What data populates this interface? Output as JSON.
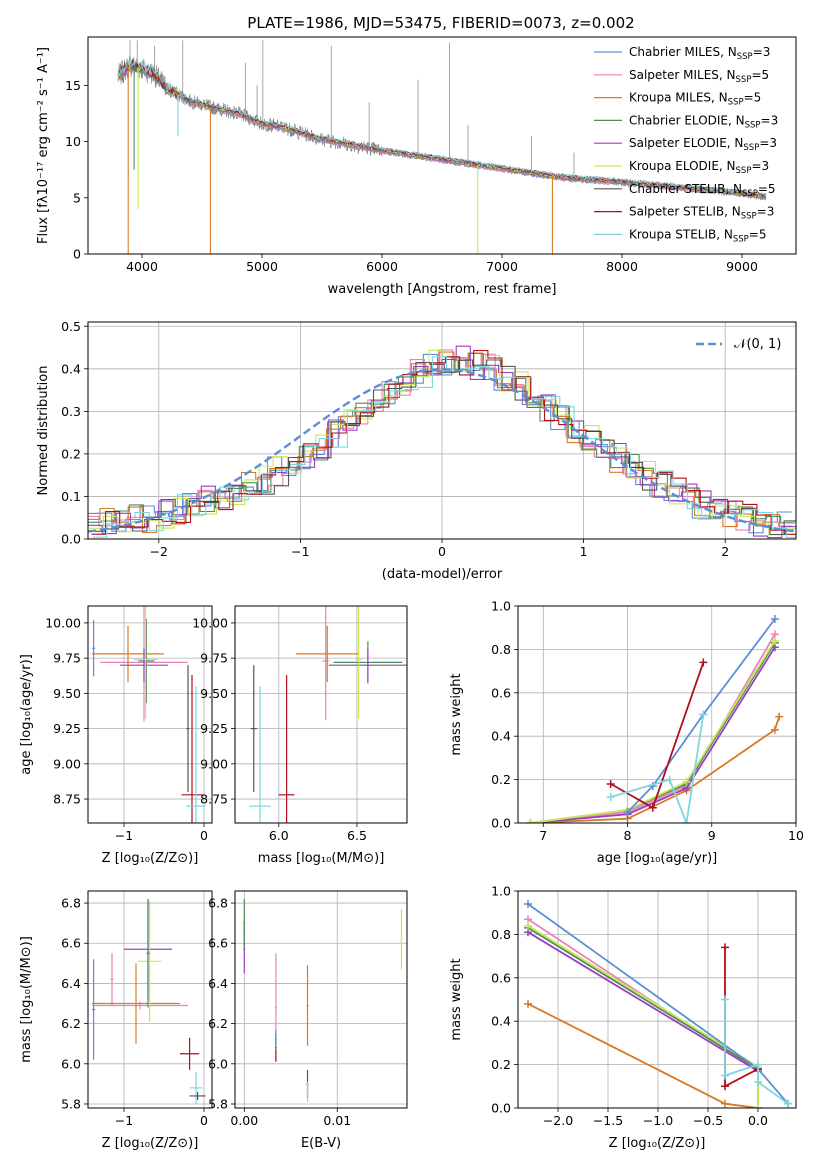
{
  "figure": {
    "title": "PLATE=1986, MJD=53475, FIBERID=0073, z=0.002"
  },
  "colors": {
    "chabrier_miles": "#5b8ed6",
    "salpeter_miles": "#e882b9",
    "kroupa_miles": "#d97a24",
    "chabrier_elodie": "#4f8e5a",
    "salpeter_elodie": "#9a3fc0",
    "kroupa_elodie": "#c8e85a",
    "chabrier_stelib": "#555555",
    "salpeter_stelib": "#b0101a",
    "kroupa_stelib": "#7dd6e0",
    "data": "#808080",
    "normal": "#5b8ed6"
  },
  "chart_data": [
    {
      "id": "spectrum",
      "type": "line",
      "xlabel": "wavelength [Angstrom, rest frame]",
      "ylabel": "Flux [fλ10⁻¹⁷ erg cm⁻² s⁻¹ A⁻¹]",
      "xlim": [
        3550,
        9450
      ],
      "ylim": [
        0,
        19.3
      ],
      "xticks": [
        4000,
        5000,
        6000,
        7000,
        8000,
        9000
      ],
      "yticks": [
        0,
        5,
        10,
        15
      ],
      "legend_position": "top-right",
      "legend": [
        {
          "label": "Chabrier MILES, N",
          "sub": "SSP",
          "suffix": "=3",
          "color": "#5b8ed6"
        },
        {
          "label": "Salpeter MILES, N",
          "sub": "SSP",
          "suffix": "=5",
          "color": "#e882b9"
        },
        {
          "label": "Kroupa MILES, N",
          "sub": "SSP",
          "suffix": "=5",
          "color": "#d97a24"
        },
        {
          "label": "Chabrier ELODIE, N",
          "sub": "SSP",
          "suffix": "=3",
          "color": "#4f8e5a"
        },
        {
          "label": "Salpeter ELODIE, N",
          "sub": "SSP",
          "suffix": "=3",
          "color": "#9a3fc0"
        },
        {
          "label": "Kroupa ELODIE, N",
          "sub": "SSP",
          "suffix": "=3",
          "color": "#c8e85a"
        },
        {
          "label": "Chabrier STELIB, N",
          "sub": "SSP",
          "suffix": "=5",
          "color": "#555555"
        },
        {
          "label": "Salpeter STELIB, N",
          "sub": "SSP",
          "suffix": "=3",
          "color": "#b0101a"
        },
        {
          "label": "Kroupa STELIB, N",
          "sub": "SSP",
          "suffix": "=5",
          "color": "#7dd6e0"
        }
      ],
      "continuum": [
        [
          3800,
          15.8
        ],
        [
          3900,
          16.8
        ],
        [
          4000,
          16.5
        ],
        [
          4100,
          16.0
        ],
        [
          4200,
          14.8
        ],
        [
          4400,
          13.6
        ],
        [
          4600,
          13.0
        ],
        [
          4800,
          12.5
        ],
        [
          5000,
          11.6
        ],
        [
          5200,
          11.2
        ],
        [
          5500,
          10.2
        ],
        [
          6000,
          9.2
        ],
        [
          6500,
          8.4
        ],
        [
          7000,
          7.6
        ],
        [
          7500,
          6.8
        ],
        [
          8000,
          6.4
        ],
        [
          8500,
          5.9
        ],
        [
          9000,
          5.4
        ],
        [
          9200,
          5.1
        ]
      ],
      "series_ranges": {
        "data": [
          3800,
          9200
        ],
        "models": [
          3800,
          9200
        ]
      },
      "spikes": [
        {
          "x": 3900,
          "y": 19.0
        },
        {
          "x": 3960,
          "y": 19.0
        },
        {
          "x": 4103,
          "y": 18.5
        },
        {
          "x": 4340,
          "y": 19.0
        },
        {
          "x": 4861,
          "y": 17.0
        },
        {
          "x": 4959,
          "y": 15.0
        },
        {
          "x": 5007,
          "y": 19.0
        },
        {
          "x": 5577,
          "y": 18.5
        },
        {
          "x": 5893,
          "y": 13.5
        },
        {
          "x": 6300,
          "y": 15.5
        },
        {
          "x": 6563,
          "y": 18.8
        },
        {
          "x": 6717,
          "y": 11.5
        },
        {
          "x": 7245,
          "y": 10.5
        },
        {
          "x": 7600,
          "y": 9.0
        }
      ],
      "dips": [
        {
          "x": 3885,
          "y": 0.0,
          "color": "#d97a24"
        },
        {
          "x": 3934,
          "y": 7.5,
          "color": "#4f8e5a"
        },
        {
          "x": 3968,
          "y": 4.0,
          "color": "#c8e85a"
        },
        {
          "x": 4300,
          "y": 10.5,
          "color": "#7dd6e0"
        },
        {
          "x": 4570,
          "y": 0.0,
          "color": "#d97a24"
        },
        {
          "x": 6798,
          "y": 0.0,
          "color": "#c8e85a"
        },
        {
          "x": 7420,
          "y": 0.0,
          "color": "#d97a24"
        }
      ]
    },
    {
      "id": "residual_histogram",
      "type": "histogram",
      "xlabel": "(data-model)/error",
      "ylabel": "Normed distribution",
      "xlim": [
        -2.5,
        2.5
      ],
      "ylim": [
        0,
        0.51
      ],
      "xticks": [
        -2,
        -1,
        0,
        1,
        2
      ],
      "yticks": [
        0.0,
        0.1,
        0.2,
        0.3,
        0.4,
        0.5
      ],
      "grid": true,
      "legend_position": "top-right",
      "legend": [
        {
          "label": "𝒩(0, 1)",
          "style": "dashed",
          "color": "#5b8ed6"
        }
      ],
      "bin_width": 0.1,
      "bin_start": -2.5,
      "base_values": [
        0.03,
        0.04,
        0.04,
        0.05,
        0.05,
        0.06,
        0.07,
        0.08,
        0.09,
        0.1,
        0.11,
        0.13,
        0.14,
        0.16,
        0.18,
        0.2,
        0.22,
        0.25,
        0.27,
        0.3,
        0.32,
        0.35,
        0.37,
        0.39,
        0.41,
        0.42,
        0.42,
        0.41,
        0.4,
        0.38,
        0.36,
        0.34,
        0.31,
        0.29,
        0.26,
        0.24,
        0.21,
        0.19,
        0.17,
        0.15,
        0.13,
        0.11,
        0.1,
        0.08,
        0.07,
        0.06,
        0.05,
        0.04,
        0.03,
        0.03
      ],
      "normal_curve": {
        "mean": 0,
        "sigma": 1
      }
    },
    {
      "id": "age_vs_Z",
      "type": "errorbar",
      "xlabel": "Z [log₁₀(Z/Z⊙)]",
      "ylabel": "age  [log₁₀(age/yr)]",
      "xlim": [
        -1.45,
        0.1
      ],
      "ylim": [
        8.58,
        10.12
      ],
      "xticks": [
        -1,
        0
      ],
      "yticks": [
        8.75,
        9.0,
        9.25,
        9.5,
        9.75,
        10.0
      ],
      "points": [
        {
          "x": -0.75,
          "y": 9.72,
          "xerr": 0.55,
          "yerr": 0.42,
          "color": "#e882b9"
        },
        {
          "x": -0.95,
          "y": 9.78,
          "xerr": 0.45,
          "yerr": 0.2,
          "color": "#d97a24"
        },
        {
          "x": -0.72,
          "y": 9.73,
          "xerr": 0.1,
          "yerr": 0.3,
          "color": "#4f8e5a"
        },
        {
          "x": -0.75,
          "y": 9.7,
          "xerr": 0.3,
          "yerr": 0.12,
          "color": "#9a3fc0"
        },
        {
          "x": -0.73,
          "y": 9.74,
          "xerr": 0.15,
          "yerr": 0.42,
          "color": "#c8e85a"
        },
        {
          "x": -0.2,
          "y": 9.25,
          "xerr": 0.02,
          "yerr": 0.45,
          "color": "#555555"
        },
        {
          "x": -0.15,
          "y": 8.78,
          "xerr": 0.13,
          "yerr": 0.85,
          "color": "#b0101a"
        },
        {
          "x": -0.1,
          "y": 8.7,
          "xerr": 0.12,
          "yerr": 0.85,
          "color": "#7dd6e0"
        },
        {
          "x": -1.38,
          "y": 9.82,
          "xerr": 0.02,
          "yerr": 0.2,
          "color": "#5b8ed6"
        }
      ]
    },
    {
      "id": "age_vs_mass",
      "type": "errorbar",
      "xlabel": "mass [log₁₀(M/M⊙)]",
      "ylabel": "",
      "xlim": [
        5.72,
        6.82
      ],
      "ylim": [
        8.58,
        10.12
      ],
      "xticks": [
        6.0,
        6.5
      ],
      "yticks": [
        8.75,
        9.0,
        9.25,
        9.5,
        9.75,
        10.0
      ],
      "points": [
        {
          "x": 6.3,
          "y": 9.73,
          "xerr": 0.02,
          "yerr": 0.42,
          "color": "#e882b9"
        },
        {
          "x": 6.31,
          "y": 9.78,
          "xerr": 0.2,
          "yerr": 0.2,
          "color": "#d97a24"
        },
        {
          "x": 6.57,
          "y": 9.72,
          "xerr": 0.22,
          "yerr": 0.15,
          "color": "#4f8e5a"
        },
        {
          "x": 6.57,
          "y": 9.7,
          "xerr": 0.25,
          "yerr": 0.12,
          "color": "#9a3fc0"
        },
        {
          "x": 6.51,
          "y": 9.74,
          "xerr": 0.02,
          "yerr": 0.42,
          "color": "#c8e85a"
        },
        {
          "x": 5.84,
          "y": 9.25,
          "xerr": 0.02,
          "yerr": 0.45,
          "color": "#555555"
        },
        {
          "x": 6.05,
          "y": 8.78,
          "xerr": 0.05,
          "yerr": 0.85,
          "color": "#b0101a"
        },
        {
          "x": 5.88,
          "y": 8.7,
          "xerr": 0.07,
          "yerr": 0.85,
          "color": "#7dd6e0"
        }
      ]
    },
    {
      "id": "massweight_vs_age",
      "type": "line",
      "xlabel": "age  [log₁₀(age/yr)]",
      "ylabel": "mass weight",
      "xlim": [
        6.7,
        10.0
      ],
      "ylim": [
        0,
        1.0
      ],
      "xticks": [
        7,
        8,
        9,
        10
      ],
      "yticks": [
        0.0,
        0.2,
        0.4,
        0.6,
        0.8,
        1.0
      ],
      "grid": true,
      "series": [
        {
          "color": "#d97a24",
          "points": [
            [
              6.85,
              0.0
            ],
            [
              8.0,
              0.02
            ],
            [
              8.7,
              0.15
            ],
            [
              9.75,
              0.43
            ],
            [
              9.8,
              0.49
            ]
          ]
        },
        {
          "color": "#e882b9",
          "points": [
            [
              6.85,
              0.0
            ],
            [
              8.0,
              0.05
            ],
            [
              8.7,
              0.17
            ],
            [
              9.75,
              0.87
            ]
          ]
        },
        {
          "color": "#9a3fc0",
          "points": [
            [
              6.85,
              0.0
            ],
            [
              8.0,
              0.04
            ],
            [
              8.7,
              0.16
            ],
            [
              9.75,
              0.81
            ]
          ]
        },
        {
          "color": "#4f8e5a",
          "points": [
            [
              6.85,
              0.0
            ],
            [
              8.0,
              0.06
            ],
            [
              8.7,
              0.18
            ],
            [
              9.75,
              0.83
            ]
          ]
        },
        {
          "color": "#c8e85a",
          "points": [
            [
              6.85,
              0.0
            ],
            [
              8.0,
              0.06
            ],
            [
              8.7,
              0.19
            ],
            [
              9.75,
              0.84
            ]
          ]
        },
        {
          "color": "#5b8ed6",
          "points": [
            [
              8.0,
              0.05
            ],
            [
              8.3,
              0.17
            ],
            [
              8.9,
              0.5
            ],
            [
              9.75,
              0.94
            ]
          ]
        },
        {
          "color": "#b0101a",
          "points": [
            [
              7.8,
              0.18
            ],
            [
              8.3,
              0.07
            ],
            [
              8.9,
              0.74
            ]
          ]
        },
        {
          "color": "#7dd6e0",
          "points": [
            [
              7.8,
              0.12
            ],
            [
              8.5,
              0.2
            ],
            [
              8.7,
              0.0
            ],
            [
              8.9,
              0.5
            ]
          ]
        }
      ]
    },
    {
      "id": "mass_vs_Z",
      "type": "errorbar",
      "xlabel": "Z [log₁₀(Z/Z⊙)]",
      "ylabel": "mass [log₁₀(M/M⊙)]",
      "xlim": [
        -1.45,
        0.1
      ],
      "ylim": [
        5.78,
        6.86
      ],
      "xticks": [
        -1,
        0
      ],
      "yticks": [
        5.8,
        6.0,
        6.2,
        6.4,
        6.6,
        6.8
      ],
      "points": [
        {
          "x": -1.38,
          "y": 6.27,
          "xerr": 0.02,
          "yerr": 0.25,
          "color": "#5b8ed6"
        },
        {
          "x": -0.8,
          "y": 6.29,
          "xerr": 0.6,
          "yerr": 0.02,
          "color": "#e882b9"
        },
        {
          "x": -1.15,
          "y": 6.42,
          "xerr": 0.02,
          "yerr": 0.13,
          "color": "#e882b9"
        },
        {
          "x": -0.85,
          "y": 6.3,
          "xerr": 0.55,
          "yerr": 0.2,
          "color": "#d97a24"
        },
        {
          "x": -0.7,
          "y": 6.57,
          "xerr": 0.3,
          "yerr": 0.25,
          "color": "#9a3fc0"
        },
        {
          "x": -0.68,
          "y": 6.51,
          "xerr": 0.15,
          "yerr": 0.3,
          "color": "#c8e85a"
        },
        {
          "x": -0.7,
          "y": 6.55,
          "xerr": 0.02,
          "yerr": 0.27,
          "color": "#4f8e5a"
        },
        {
          "x": -0.18,
          "y": 6.05,
          "xerr": 0.12,
          "yerr": 0.08,
          "color": "#b0101a"
        },
        {
          "x": -0.1,
          "y": 5.88,
          "xerr": 0.08,
          "yerr": 0.08,
          "color": "#7dd6e0"
        },
        {
          "x": -0.08,
          "y": 5.84,
          "xerr": 0.1,
          "yerr": 0.02,
          "color": "#555555"
        }
      ]
    },
    {
      "id": "mass_vs_ebv",
      "type": "errorbar",
      "xlabel": "E(B-V)",
      "ylabel": "",
      "xlim": [
        -0.001,
        0.0175
      ],
      "ylim": [
        5.78,
        6.86
      ],
      "xticks": [
        0.0,
        0.01
      ],
      "yticks": [
        5.8,
        6.0,
        6.2,
        6.4,
        6.6,
        6.8
      ],
      "points": [
        {
          "x": 0.0,
          "y": 6.57,
          "xerr": 0.0001,
          "yerr": 0.12,
          "color": "#9a3fc0"
        },
        {
          "x": 0.0,
          "y": 6.7,
          "xerr": 0.0001,
          "yerr": 0.12,
          "color": "#4f8e5a"
        },
        {
          "x": 0.0034,
          "y": 6.28,
          "xerr": 0.0001,
          "yerr": 0.27,
          "color": "#e882b9"
        },
        {
          "x": 0.0034,
          "y": 6.08,
          "xerr": 0.0001,
          "yerr": 0.07,
          "color": "#b0101a"
        },
        {
          "x": 0.0034,
          "y": 6.12,
          "xerr": 0.0001,
          "yerr": 0.05,
          "color": "#5b8ed6"
        },
        {
          "x": 0.0068,
          "y": 6.29,
          "xerr": 0.0001,
          "yerr": 0.2,
          "color": "#d97a24"
        },
        {
          "x": 0.0068,
          "y": 5.9,
          "xerr": 0.0001,
          "yerr": 0.07,
          "color": "#555555"
        },
        {
          "x": 0.0068,
          "y": 5.86,
          "xerr": 0.0001,
          "yerr": 0.05,
          "color": "#7dd6e0"
        },
        {
          "x": 0.0169,
          "y": 6.62,
          "xerr": 0.0001,
          "yerr": 0.15,
          "color": "#c8e85a"
        }
      ]
    },
    {
      "id": "massweight_vs_Z",
      "type": "line",
      "xlabel": "Z [log₁₀(Z/Z⊙)]",
      "ylabel": "mass weight",
      "xlim": [
        -2.4,
        0.38
      ],
      "ylim": [
        0,
        1.0
      ],
      "xticks": [
        -2.0,
        -1.5,
        -1.0,
        -0.5,
        0.0
      ],
      "yticks": [
        0.0,
        0.2,
        0.4,
        0.6,
        0.8,
        1.0
      ],
      "grid": true,
      "series": [
        {
          "color": "#d97a24",
          "points": [
            [
              -2.3,
              0.48
            ],
            [
              -0.33,
              0.02
            ],
            [
              0.0,
              0.0
            ]
          ]
        },
        {
          "color": "#e882b9",
          "points": [
            [
              -2.3,
              0.87
            ],
            [
              0.0,
              0.17
            ],
            [
              0.0,
              0.0
            ]
          ]
        },
        {
          "color": "#9a3fc0",
          "points": [
            [
              -2.3,
              0.81
            ],
            [
              0.0,
              0.17
            ],
            [
              0.0,
              0.0
            ]
          ]
        },
        {
          "color": "#4f8e5a",
          "points": [
            [
              -2.3,
              0.83
            ],
            [
              0.0,
              0.18
            ],
            [
              0.0,
              0.0
            ]
          ]
        },
        {
          "color": "#c8e85a",
          "points": [
            [
              -2.3,
              0.84
            ],
            [
              0.0,
              0.19
            ],
            [
              0.0,
              0.0
            ]
          ]
        },
        {
          "color": "#5b8ed6",
          "points": [
            [
              -2.3,
              0.94
            ],
            [
              0.0,
              0.18
            ],
            [
              0.3,
              0.02
            ]
          ]
        },
        {
          "color": "#b0101a",
          "points": [
            [
              -0.33,
              0.74
            ],
            [
              -0.33,
              0.1
            ],
            [
              0.0,
              0.18
            ]
          ]
        },
        {
          "color": "#7dd6e0",
          "points": [
            [
              -0.33,
              0.5
            ],
            [
              -0.33,
              0.15
            ],
            [
              0.0,
              0.2
            ],
            [
              0.0,
              0.12
            ],
            [
              0.3,
              0.02
            ]
          ]
        }
      ]
    }
  ]
}
